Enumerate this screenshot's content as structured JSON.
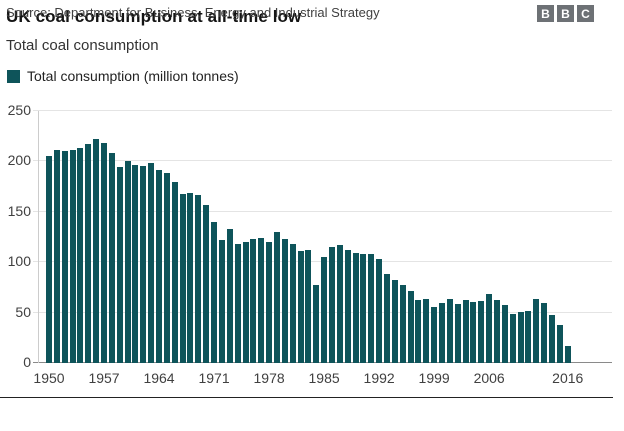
{
  "header": {
    "title": "UK coal consumption at all-time low",
    "subtitle": "Total coal consumption"
  },
  "legend": {
    "label": "Total consumption (million tonnes)",
    "swatch_color": "#0e545a"
  },
  "chart_data": {
    "type": "bar",
    "title": "Total coal consumption",
    "ylabel": "",
    "xlabel": "",
    "unit": "million tonnes",
    "ylim": [
      0,
      250
    ],
    "y_ticks": [
      0,
      50,
      100,
      150,
      200,
      250
    ],
    "x_tick_labels": [
      1950,
      1957,
      1964,
      1971,
      1978,
      1985,
      1992,
      1999,
      2006,
      2016
    ],
    "grid": "horizontal",
    "legend_position": "top-left",
    "bar_color": "#0e545a",
    "years": [
      1950,
      1951,
      1952,
      1953,
      1954,
      1955,
      1956,
      1957,
      1958,
      1959,
      1960,
      1961,
      1962,
      1963,
      1964,
      1965,
      1966,
      1967,
      1968,
      1969,
      1970,
      1971,
      1972,
      1973,
      1974,
      1975,
      1976,
      1977,
      1978,
      1979,
      1980,
      1981,
      1982,
      1983,
      1984,
      1985,
      1986,
      1987,
      1988,
      1989,
      1990,
      1991,
      1992,
      1993,
      1994,
      1995,
      1996,
      1997,
      1998,
      1999,
      2000,
      2001,
      2002,
      2003,
      2004,
      2005,
      2006,
      2007,
      2008,
      2009,
      2010,
      2011,
      2012,
      2013,
      2014,
      2015,
      2016
    ],
    "values": [
      205,
      211,
      210,
      211,
      213,
      217,
      222,
      218,
      208,
      194,
      200,
      196,
      195,
      198,
      191,
      189,
      180,
      168,
      169,
      167,
      157,
      140,
      122,
      133,
      118,
      120,
      123,
      124,
      120,
      130,
      123,
      118,
      111,
      112,
      77,
      105,
      115,
      117,
      112,
      109,
      108,
      108,
      103,
      88,
      82,
      77,
      71,
      63,
      64,
      56,
      60,
      64,
      59,
      63,
      61,
      62,
      68,
      63,
      58,
      49,
      51,
      52,
      64,
      60,
      48,
      38,
      17
    ]
  },
  "colors": {
    "bar": "#0e545a",
    "grid_line": "#e4e4e4",
    "zero_line": "#8a8a8a",
    "axis_text": "#404040",
    "footer_rule": "#222222",
    "logo_gray": "#6d7175"
  },
  "footer": {
    "source": "Source: Department for Business, Energy and Industrial Strategy",
    "logo_letters": [
      "B",
      "B",
      "C"
    ]
  }
}
